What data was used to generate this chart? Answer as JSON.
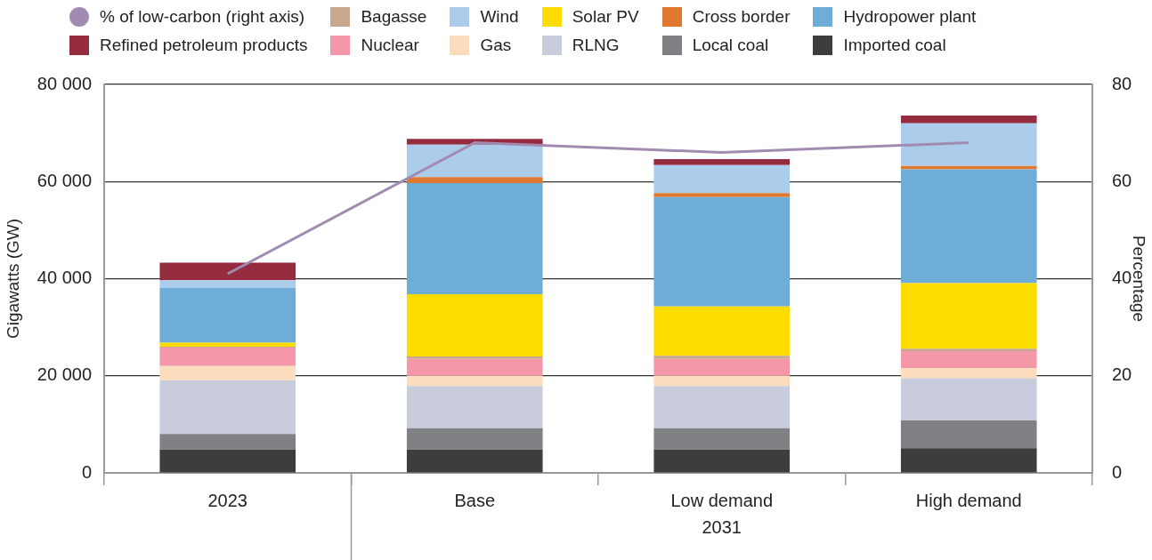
{
  "chart_data": {
    "type": "bar",
    "stacked": true,
    "ylabel": "Gigawatts (GW)",
    "y2label": "Percentage",
    "categories": [
      "2023",
      "Base",
      "Low demand",
      "High demand"
    ],
    "annotations": [
      "2031"
    ],
    "ylim": [
      0,
      80000
    ],
    "yticks": [
      {
        "value": 0,
        "label": "0"
      },
      {
        "value": 20000,
        "label": "20 000"
      },
      {
        "value": 40000,
        "label": "40 000"
      },
      {
        "value": 60000,
        "label": "60 000"
      },
      {
        "value": 80000,
        "label": "80 000"
      }
    ],
    "y2lim": [
      0,
      80
    ],
    "y2ticks": [
      0,
      20,
      40,
      60,
      80
    ],
    "grid": "y",
    "legend": "top",
    "marker": "none",
    "line_style": "solid",
    "series": [
      {
        "name": "Imported coal",
        "color": "#3d3d3d",
        "values": [
          4800,
          4800,
          4800,
          5100
        ]
      },
      {
        "name": "Local coal",
        "color": "#808184",
        "values": [
          3200,
          4400,
          4400,
          5700
        ]
      },
      {
        "name": "RLNG",
        "color": "#c9ccdd",
        "values": [
          11100,
          8700,
          8700,
          8700
        ]
      },
      {
        "name": "Gas",
        "color": "#fddbbd",
        "values": [
          2900,
          2100,
          2100,
          2100
        ]
      },
      {
        "name": "Nuclear",
        "color": "#f497a8",
        "values": [
          3800,
          3500,
          3500,
          3500
        ]
      },
      {
        "name": "Bagasse",
        "color": "#c9a98e",
        "values": [
          200,
          500,
          600,
          500
        ]
      },
      {
        "name": "Solar PV",
        "color": "#fddc00",
        "values": [
          800,
          12800,
          10200,
          13500
        ]
      },
      {
        "name": "Hydropower plant",
        "color": "#6fadd9",
        "values": [
          11300,
          22900,
          22500,
          23400
        ]
      },
      {
        "name": "Cross border",
        "color": "#e07830",
        "values": [
          0,
          1200,
          800,
          700
        ]
      },
      {
        "name": "Wind",
        "color": "#abcdeb",
        "values": [
          1600,
          6700,
          5800,
          8800
        ]
      },
      {
        "name": "Refined petroleum products",
        "color": "#952b3e",
        "values": [
          3600,
          1200,
          1200,
          1600
        ]
      },
      {
        "name": "% of low-carbon (right axis)",
        "type": "line",
        "axis": "y2",
        "color": "#a28bb0",
        "values": [
          41,
          68,
          66,
          68
        ]
      }
    ]
  }
}
